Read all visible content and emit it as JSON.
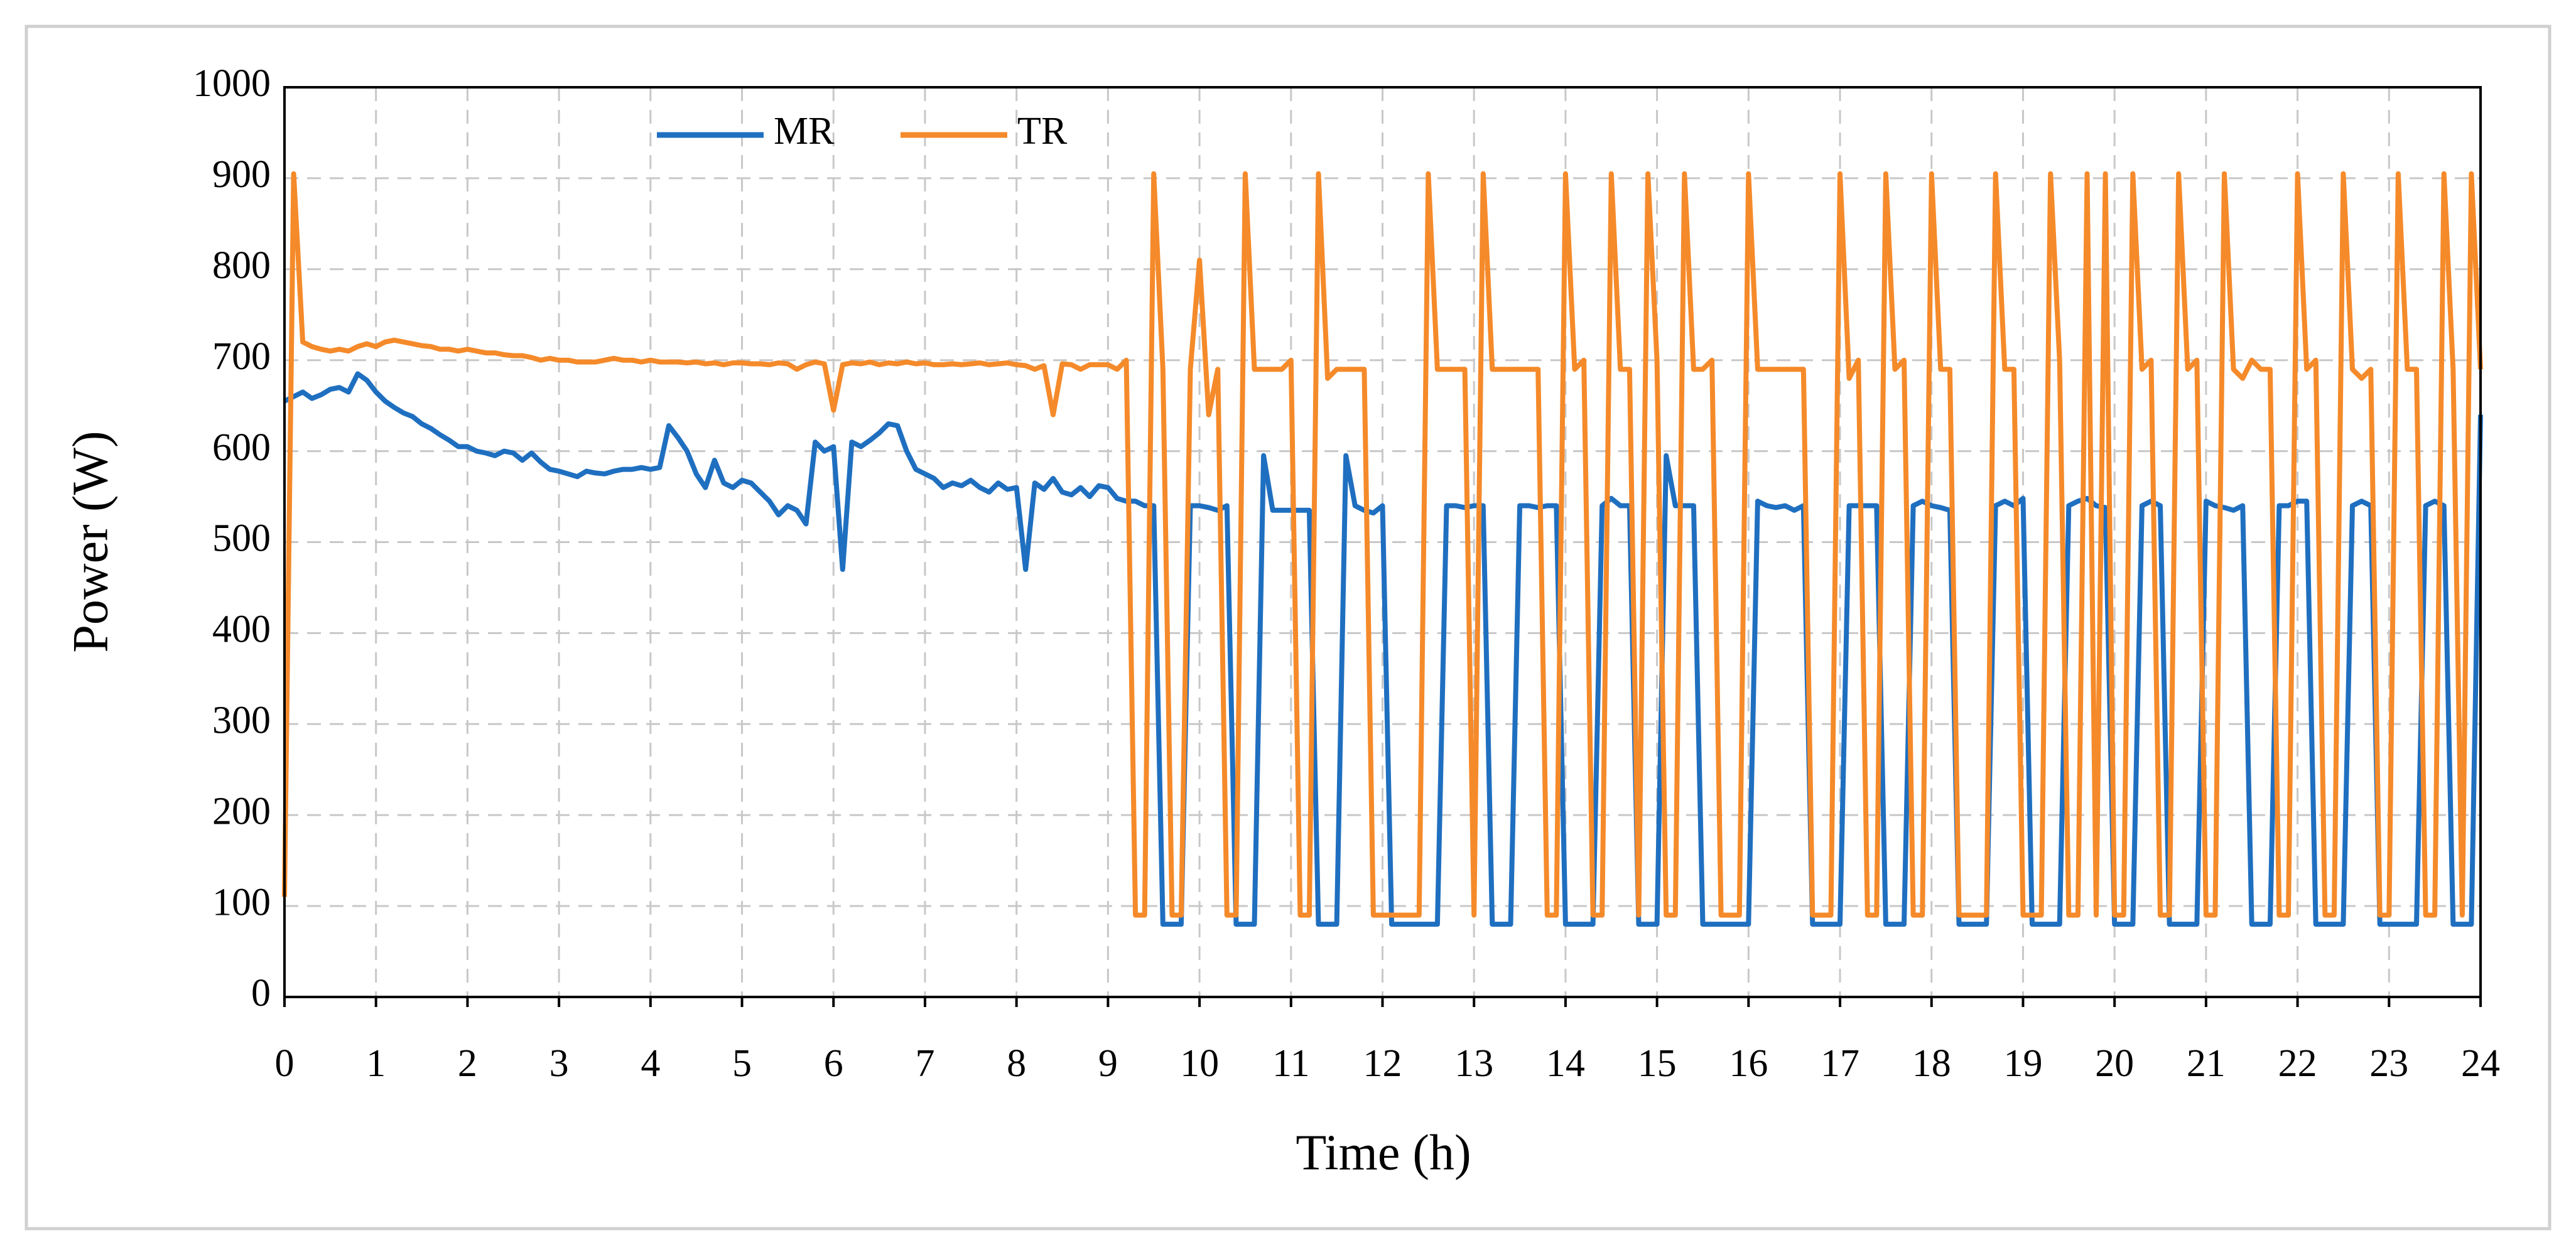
{
  "chart_data": {
    "type": "line",
    "xlabel": "Time (h)",
    "ylabel": "Power (W)",
    "xlim": [
      0,
      24
    ],
    "ylim": [
      0,
      1000
    ],
    "xticks": [
      0,
      1,
      2,
      3,
      4,
      5,
      6,
      7,
      8,
      9,
      10,
      11,
      12,
      13,
      14,
      15,
      16,
      17,
      18,
      19,
      20,
      21,
      22,
      23,
      24
    ],
    "yticks": [
      0,
      100,
      200,
      300,
      400,
      500,
      600,
      700,
      800,
      900,
      1000
    ],
    "grid": true,
    "legend": "top",
    "x": [
      0,
      0.1,
      0.2,
      0.3,
      0.4,
      0.5,
      0.6,
      0.7,
      0.8,
      0.9,
      1,
      1.1,
      1.2,
      1.3,
      1.4,
      1.5,
      1.6,
      1.7,
      1.8,
      1.9,
      2,
      2.1,
      2.2,
      2.3,
      2.4,
      2.5,
      2.6,
      2.7,
      2.8,
      2.9,
      3,
      3.1,
      3.2,
      3.3,
      3.4,
      3.5,
      3.6,
      3.7,
      3.8,
      3.9,
      4,
      4.1,
      4.2,
      4.3,
      4.4,
      4.5,
      4.6,
      4.7,
      4.8,
      4.9,
      5,
      5.1,
      5.2,
      5.3,
      5.4,
      5.5,
      5.6,
      5.7,
      5.8,
      5.9,
      6,
      6.1,
      6.2,
      6.3,
      6.4,
      6.5,
      6.6,
      6.7,
      6.8,
      6.9,
      7,
      7.1,
      7.2,
      7.3,
      7.4,
      7.5,
      7.6,
      7.7,
      7.8,
      7.9,
      8,
      8.1,
      8.2,
      8.3,
      8.4,
      8.5,
      8.6,
      8.7,
      8.8,
      8.9,
      9,
      9.1,
      9.2,
      9.3,
      9.4,
      9.5,
      9.6,
      9.7,
      9.8,
      9.9,
      10,
      10.1,
      10.2,
      10.3,
      10.4,
      10.5,
      10.6,
      10.7,
      10.8,
      10.9,
      11,
      11.1,
      11.2,
      11.3,
      11.4,
      11.5,
      11.6,
      11.7,
      11.8,
      11.9,
      12,
      12.1,
      12.2,
      12.3,
      12.4,
      12.5,
      12.6,
      12.7,
      12.8,
      12.9,
      13,
      13.1,
      13.2,
      13.3,
      13.4,
      13.5,
      13.6,
      13.7,
      13.8,
      13.9,
      14,
      14.1,
      14.2,
      14.3,
      14.4,
      14.5,
      14.6,
      14.7,
      14.8,
      14.9,
      15,
      15.1,
      15.2,
      15.3,
      15.4,
      15.5,
      15.6,
      15.7,
      15.8,
      15.9,
      16,
      16.1,
      16.2,
      16.3,
      16.4,
      16.5,
      16.6,
      16.7,
      16.8,
      16.9,
      17,
      17.1,
      17.2,
      17.3,
      17.4,
      17.5,
      17.6,
      17.7,
      17.8,
      17.9,
      18,
      18.1,
      18.2,
      18.3,
      18.4,
      18.5,
      18.6,
      18.7,
      18.8,
      18.9,
      19,
      19.1,
      19.2,
      19.3,
      19.4,
      19.5,
      19.6,
      19.7,
      19.8,
      19.9,
      20,
      20.1,
      20.2,
      20.3,
      20.4,
      20.5,
      20.6,
      20.7,
      20.8,
      20.9,
      21,
      21.1,
      21.2,
      21.3,
      21.4,
      21.5,
      21.6,
      21.7,
      21.8,
      21.9,
      22,
      22.1,
      22.2,
      22.3,
      22.4,
      22.5,
      22.6,
      22.7,
      22.8,
      22.9,
      23,
      23.1,
      23.2,
      23.3,
      23.4,
      23.5,
      23.6,
      23.7,
      23.8,
      23.9,
      24
    ],
    "series": [
      {
        "name": "MR",
        "color": "#1f6fc0",
        "values": [
          655,
          660,
          665,
          658,
          662,
          668,
          670,
          665,
          685,
          678,
          665,
          655,
          648,
          642,
          638,
          630,
          625,
          618,
          612,
          605,
          605,
          600,
          598,
          595,
          600,
          598,
          590,
          598,
          588,
          580,
          578,
          575,
          572,
          578,
          576,
          575,
          578,
          580,
          580,
          582,
          580,
          582,
          628,
          615,
          600,
          575,
          560,
          590,
          565,
          560,
          568,
          565,
          555,
          545,
          530,
          540,
          535,
          520,
          610,
          600,
          605,
          470,
          610,
          605,
          612,
          620,
          630,
          628,
          600,
          580,
          575,
          570,
          560,
          565,
          562,
          568,
          560,
          555,
          565,
          558,
          560,
          470,
          565,
          558,
          570,
          555,
          552,
          560,
          550,
          562,
          560,
          548,
          545,
          545,
          540,
          540,
          80,
          80,
          80,
          540,
          540,
          538,
          535,
          540,
          80,
          80,
          80,
          595,
          535,
          535,
          535,
          535,
          535,
          80,
          80,
          80,
          595,
          540,
          535,
          532,
          540,
          80,
          80,
          80,
          80,
          80,
          80,
          540,
          540,
          538,
          540,
          540,
          80,
          80,
          80,
          540,
          540,
          538,
          540,
          540,
          80,
          80,
          80,
          80,
          540,
          548,
          540,
          540,
          80,
          80,
          80,
          595,
          540,
          540,
          540,
          80,
          80,
          80,
          80,
          80,
          80,
          545,
          540,
          538,
          540,
          535,
          540,
          80,
          80,
          80,
          80,
          540,
          540,
          540,
          540,
          80,
          80,
          80,
          540,
          545,
          540,
          538,
          535,
          80,
          80,
          80,
          80,
          540,
          545,
          540,
          548,
          80,
          80,
          80,
          80,
          540,
          545,
          548,
          540,
          538,
          80,
          80,
          80,
          540,
          545,
          540,
          80,
          80,
          80,
          80,
          545,
          540,
          538,
          535,
          540,
          80,
          80,
          80,
          540,
          540,
          545,
          545,
          80,
          80,
          80,
          80,
          540,
          545,
          540,
          80,
          80,
          80,
          80,
          80,
          540,
          545,
          540,
          80,
          80,
          80,
          640
        ]
      },
      {
        "name": "TR",
        "color": "#f58a2a",
        "values": [
          110,
          905,
          720,
          715,
          712,
          710,
          712,
          710,
          715,
          718,
          715,
          720,
          722,
          720,
          718,
          716,
          715,
          712,
          712,
          710,
          712,
          710,
          708,
          708,
          706,
          705,
          705,
          703,
          700,
          702,
          700,
          700,
          698,
          698,
          698,
          700,
          702,
          700,
          700,
          698,
          700,
          698,
          698,
          698,
          697,
          698,
          696,
          697,
          695,
          697,
          697,
          696,
          696,
          695,
          697,
          696,
          690,
          695,
          698,
          696,
          645,
          695,
          697,
          696,
          698,
          695,
          697,
          696,
          698,
          696,
          697,
          695,
          695,
          696,
          695,
          696,
          697,
          695,
          696,
          697,
          695,
          694,
          690,
          694,
          640,
          696,
          695,
          690,
          695,
          695,
          695,
          690,
          700,
          90,
          90,
          905,
          690,
          90,
          90,
          690,
          810,
          640,
          690,
          90,
          90,
          905,
          690,
          690,
          690,
          690,
          700,
          90,
          90,
          905,
          680,
          690,
          690,
          690,
          690,
          90,
          90,
          90,
          90,
          90,
          90,
          905,
          690,
          690,
          690,
          690,
          90,
          905,
          690,
          690,
          690,
          690,
          690,
          690,
          90,
          90,
          905,
          690,
          700,
          90,
          90,
          905,
          690,
          690,
          90,
          905,
          700,
          90,
          90,
          905,
          690,
          690,
          700,
          90,
          90,
          90,
          905,
          690,
          690,
          690,
          690,
          690,
          690,
          90,
          90,
          90,
          905,
          680,
          700,
          90,
          90,
          905,
          690,
          700,
          90,
          90,
          905,
          690,
          690,
          90,
          90,
          90,
          90,
          905,
          690,
          690,
          90,
          90,
          90,
          905,
          700,
          90,
          90,
          905,
          90,
          905,
          90,
          90,
          905,
          690,
          700,
          90,
          90,
          905,
          690,
          700,
          90,
          90,
          905,
          690,
          680,
          700,
          690,
          690,
          90,
          90,
          905,
          690,
          700,
          90,
          90,
          905,
          690,
          680,
          690,
          90,
          90,
          905,
          690,
          690,
          90,
          90,
          905,
          690,
          90,
          905,
          690
        ]
      }
    ]
  }
}
